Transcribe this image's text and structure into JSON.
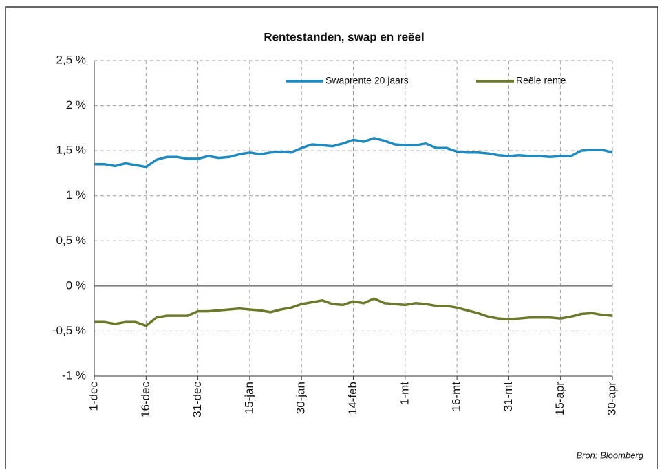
{
  "chart_data": {
    "type": "line",
    "title": "Rentestanden, swap en reëel",
    "annotation": "Bron: Bloomberg",
    "categories": [
      "1-dec",
      null,
      null,
      null,
      null,
      "16-dec",
      null,
      null,
      null,
      null,
      "31-dec",
      null,
      null,
      null,
      null,
      "15-jan",
      null,
      null,
      null,
      null,
      "30-jan",
      null,
      null,
      null,
      null,
      "14-feb",
      null,
      null,
      null,
      null,
      "1-mt",
      null,
      null,
      null,
      null,
      "16-mt",
      null,
      null,
      null,
      null,
      "31-mt",
      null,
      null,
      null,
      null,
      "15-apr",
      null,
      null,
      null,
      null,
      "30-apr"
    ],
    "series": [
      {
        "name": "Swaprente 20 jaars",
        "color": "#1f8ac0",
        "values": [
          1.35,
          1.35,
          1.33,
          1.36,
          1.34,
          1.32,
          1.4,
          1.43,
          1.43,
          1.41,
          1.41,
          1.44,
          1.42,
          1.43,
          1.46,
          1.48,
          1.46,
          1.48,
          1.49,
          1.48,
          1.53,
          1.57,
          1.56,
          1.55,
          1.58,
          1.62,
          1.6,
          1.64,
          1.61,
          1.57,
          1.56,
          1.56,
          1.58,
          1.53,
          1.53,
          1.49,
          1.48,
          1.48,
          1.47,
          1.45,
          1.44,
          1.45,
          1.44,
          1.44,
          1.43,
          1.44,
          1.44,
          1.5,
          1.51,
          1.51,
          1.48
        ]
      },
      {
        "name": "Reële rente",
        "color": "#6b7a2a",
        "values": [
          -0.4,
          -0.4,
          -0.42,
          -0.4,
          -0.4,
          -0.44,
          -0.35,
          -0.33,
          -0.33,
          -0.33,
          -0.28,
          -0.28,
          -0.27,
          -0.26,
          -0.25,
          -0.26,
          -0.27,
          -0.29,
          -0.26,
          -0.24,
          -0.2,
          -0.18,
          -0.16,
          -0.2,
          -0.21,
          -0.17,
          -0.19,
          -0.14,
          -0.19,
          -0.2,
          -0.21,
          -0.19,
          -0.2,
          -0.22,
          -0.22,
          -0.24,
          -0.27,
          -0.3,
          -0.34,
          -0.36,
          -0.37,
          -0.36,
          -0.35,
          -0.35,
          -0.35,
          -0.36,
          -0.34,
          -0.31,
          -0.3,
          -0.32,
          -0.33
        ]
      }
    ],
    "ylim": [
      -1,
      2.5
    ],
    "yticks": [
      {
        "value": -1,
        "label": "-1 %"
      },
      {
        "value": -0.5,
        "label": "-0,5 %"
      },
      {
        "value": 0,
        "label": "0 %"
      },
      {
        "value": 0.5,
        "label": "0,5 %"
      },
      {
        "value": 1,
        "label": "1 %"
      },
      {
        "value": 1.5,
        "label": "1,5 %"
      },
      {
        "value": 2,
        "label": "2 %"
      },
      {
        "value": 2.5,
        "label": "2,5 %"
      }
    ],
    "grid": true,
    "legend": "top-right"
  }
}
